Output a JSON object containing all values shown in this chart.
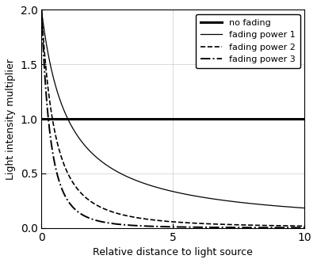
{
  "xlabel": "Relative distance to light source",
  "ylabel": "Light intensity multiplier",
  "xlim": [
    0.0,
    10.0
  ],
  "ylim": [
    0.0,
    2.0
  ],
  "xticks": [
    0.0,
    5.0,
    10.0
  ],
  "yticks": [
    0.0,
    0.5,
    1.0,
    1.5,
    2.0
  ],
  "x_start": 0.0,
  "x_end": 10.0,
  "n_points": 2000,
  "fading_powers": [
    1,
    2,
    3
  ],
  "line_styles": {
    "no_fading": {
      "linestyle": "-",
      "linewidth": 2.2,
      "color": "black",
      "label": "no fading"
    },
    "power_1": {
      "linestyle": "-",
      "linewidth": 0.9,
      "color": "black",
      "label": "fading power 1"
    },
    "power_2": {
      "linestyle": "--",
      "linewidth": 1.2,
      "color": "black",
      "label": "fading power 2"
    },
    "power_3": {
      "linestyle": "-.",
      "linewidth": 1.4,
      "color": "black",
      "label": "fading power 3"
    }
  },
  "legend_loc": "upper right",
  "background_color": "#ffffff",
  "grid_color": "#cccccc",
  "grid": true
}
